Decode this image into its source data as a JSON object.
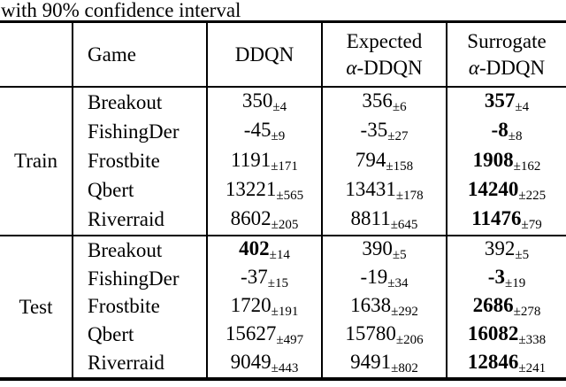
{
  "caption": "with 90% confidence interval",
  "colors": {
    "text": "#000000",
    "background": "#ffffff"
  },
  "header": {
    "game_label": "Game",
    "ddqn_label": "DDQN",
    "expected_line1": "Expected",
    "expected_alpha": "α",
    "expected_rest": "-DDQN",
    "surrogate_line1": "Surrogate",
    "surrogate_alpha": "α",
    "surrogate_rest": "-DDQN"
  },
  "sections": [
    {
      "label": "Train",
      "rows": [
        {
          "game": "Breakout",
          "cells": [
            {
              "v": "350",
              "e": "±4",
              "bold": false
            },
            {
              "v": "356",
              "e": "±6",
              "bold": false
            },
            {
              "v": "357",
              "e": "±4",
              "bold": true
            }
          ]
        },
        {
          "game": "FishingDer",
          "cells": [
            {
              "v": "-45",
              "e": "±9",
              "bold": false
            },
            {
              "v": "-35",
              "e": "±27",
              "bold": false
            },
            {
              "v": "-8",
              "e": "±8",
              "bold": true
            }
          ]
        },
        {
          "game": "Frostbite",
          "cells": [
            {
              "v": "1191",
              "e": "±171",
              "bold": false
            },
            {
              "v": "794",
              "e": "±158",
              "bold": false
            },
            {
              "v": "1908",
              "e": "±162",
              "bold": true
            }
          ]
        },
        {
          "game": "Qbert",
          "cells": [
            {
              "v": "13221",
              "e": "±565",
              "bold": false
            },
            {
              "v": "13431",
              "e": "±178",
              "bold": false
            },
            {
              "v": "14240",
              "e": "±225",
              "bold": true
            }
          ]
        },
        {
          "game": "Riverraid",
          "cells": [
            {
              "v": "8602",
              "e": "±205",
              "bold": false
            },
            {
              "v": "8811",
              "e": "±645",
              "bold": false
            },
            {
              "v": "11476",
              "e": "±79",
              "bold": true
            }
          ]
        }
      ]
    },
    {
      "label": "Test",
      "rows": [
        {
          "game": "Breakout",
          "cells": [
            {
              "v": "402",
              "e": "±14",
              "bold": true
            },
            {
              "v": "390",
              "e": "±5",
              "bold": false
            },
            {
              "v": "392",
              "e": "±5",
              "bold": false
            }
          ]
        },
        {
          "game": "FishingDer",
          "cells": [
            {
              "v": "-37",
              "e": "±15",
              "bold": false
            },
            {
              "v": "-19",
              "e": "±34",
              "bold": false
            },
            {
              "v": "-3",
              "e": "±19",
              "bold": true
            }
          ]
        },
        {
          "game": "Frostbite",
          "cells": [
            {
              "v": "1720",
              "e": "±191",
              "bold": false
            },
            {
              "v": "1638",
              "e": "±292",
              "bold": false
            },
            {
              "v": "2686",
              "e": "±278",
              "bold": true
            }
          ]
        },
        {
          "game": "Qbert",
          "cells": [
            {
              "v": "15627",
              "e": "±497",
              "bold": false
            },
            {
              "v": "15780",
              "e": "±206",
              "bold": false
            },
            {
              "v": "16082",
              "e": "±338",
              "bold": true
            }
          ]
        },
        {
          "game": "Riverraid",
          "cells": [
            {
              "v": "9049",
              "e": "±443",
              "bold": false
            },
            {
              "v": "9491",
              "e": "±802",
              "bold": false
            },
            {
              "v": "12846",
              "e": "±241",
              "bold": true
            }
          ]
        }
      ]
    }
  ]
}
